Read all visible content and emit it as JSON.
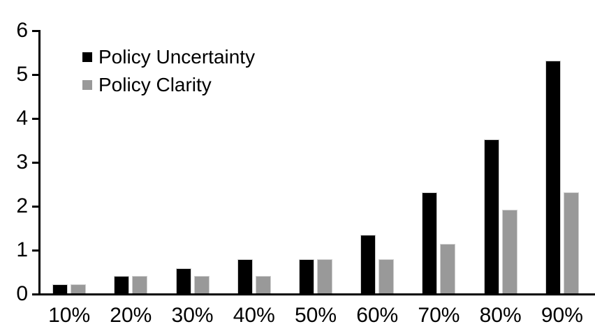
{
  "chart_data": {
    "type": "bar",
    "title": "",
    "xlabel": "",
    "ylabel": "",
    "categories": [
      "10%",
      "20%",
      "30%",
      "40%",
      "50%",
      "60%",
      "70%",
      "80%",
      "90%"
    ],
    "series": [
      {
        "name": "Policy Uncertainty",
        "color": "#000000",
        "values": [
          0.2,
          0.4,
          0.57,
          0.77,
          0.78,
          1.33,
          2.3,
          3.5,
          5.3
        ]
      },
      {
        "name": "Policy Clarity",
        "color": "#999999",
        "values": [
          0.2,
          0.4,
          0.4,
          0.4,
          0.77,
          0.77,
          1.13,
          1.9,
          2.3
        ]
      }
    ],
    "ylim": [
      0,
      6
    ],
    "yticks": [
      0,
      1,
      2,
      3,
      4,
      5,
      6
    ],
    "grid": false,
    "legend_position": "top-left-inside",
    "axis_color": "#000000",
    "background_color": "#ffffff"
  }
}
